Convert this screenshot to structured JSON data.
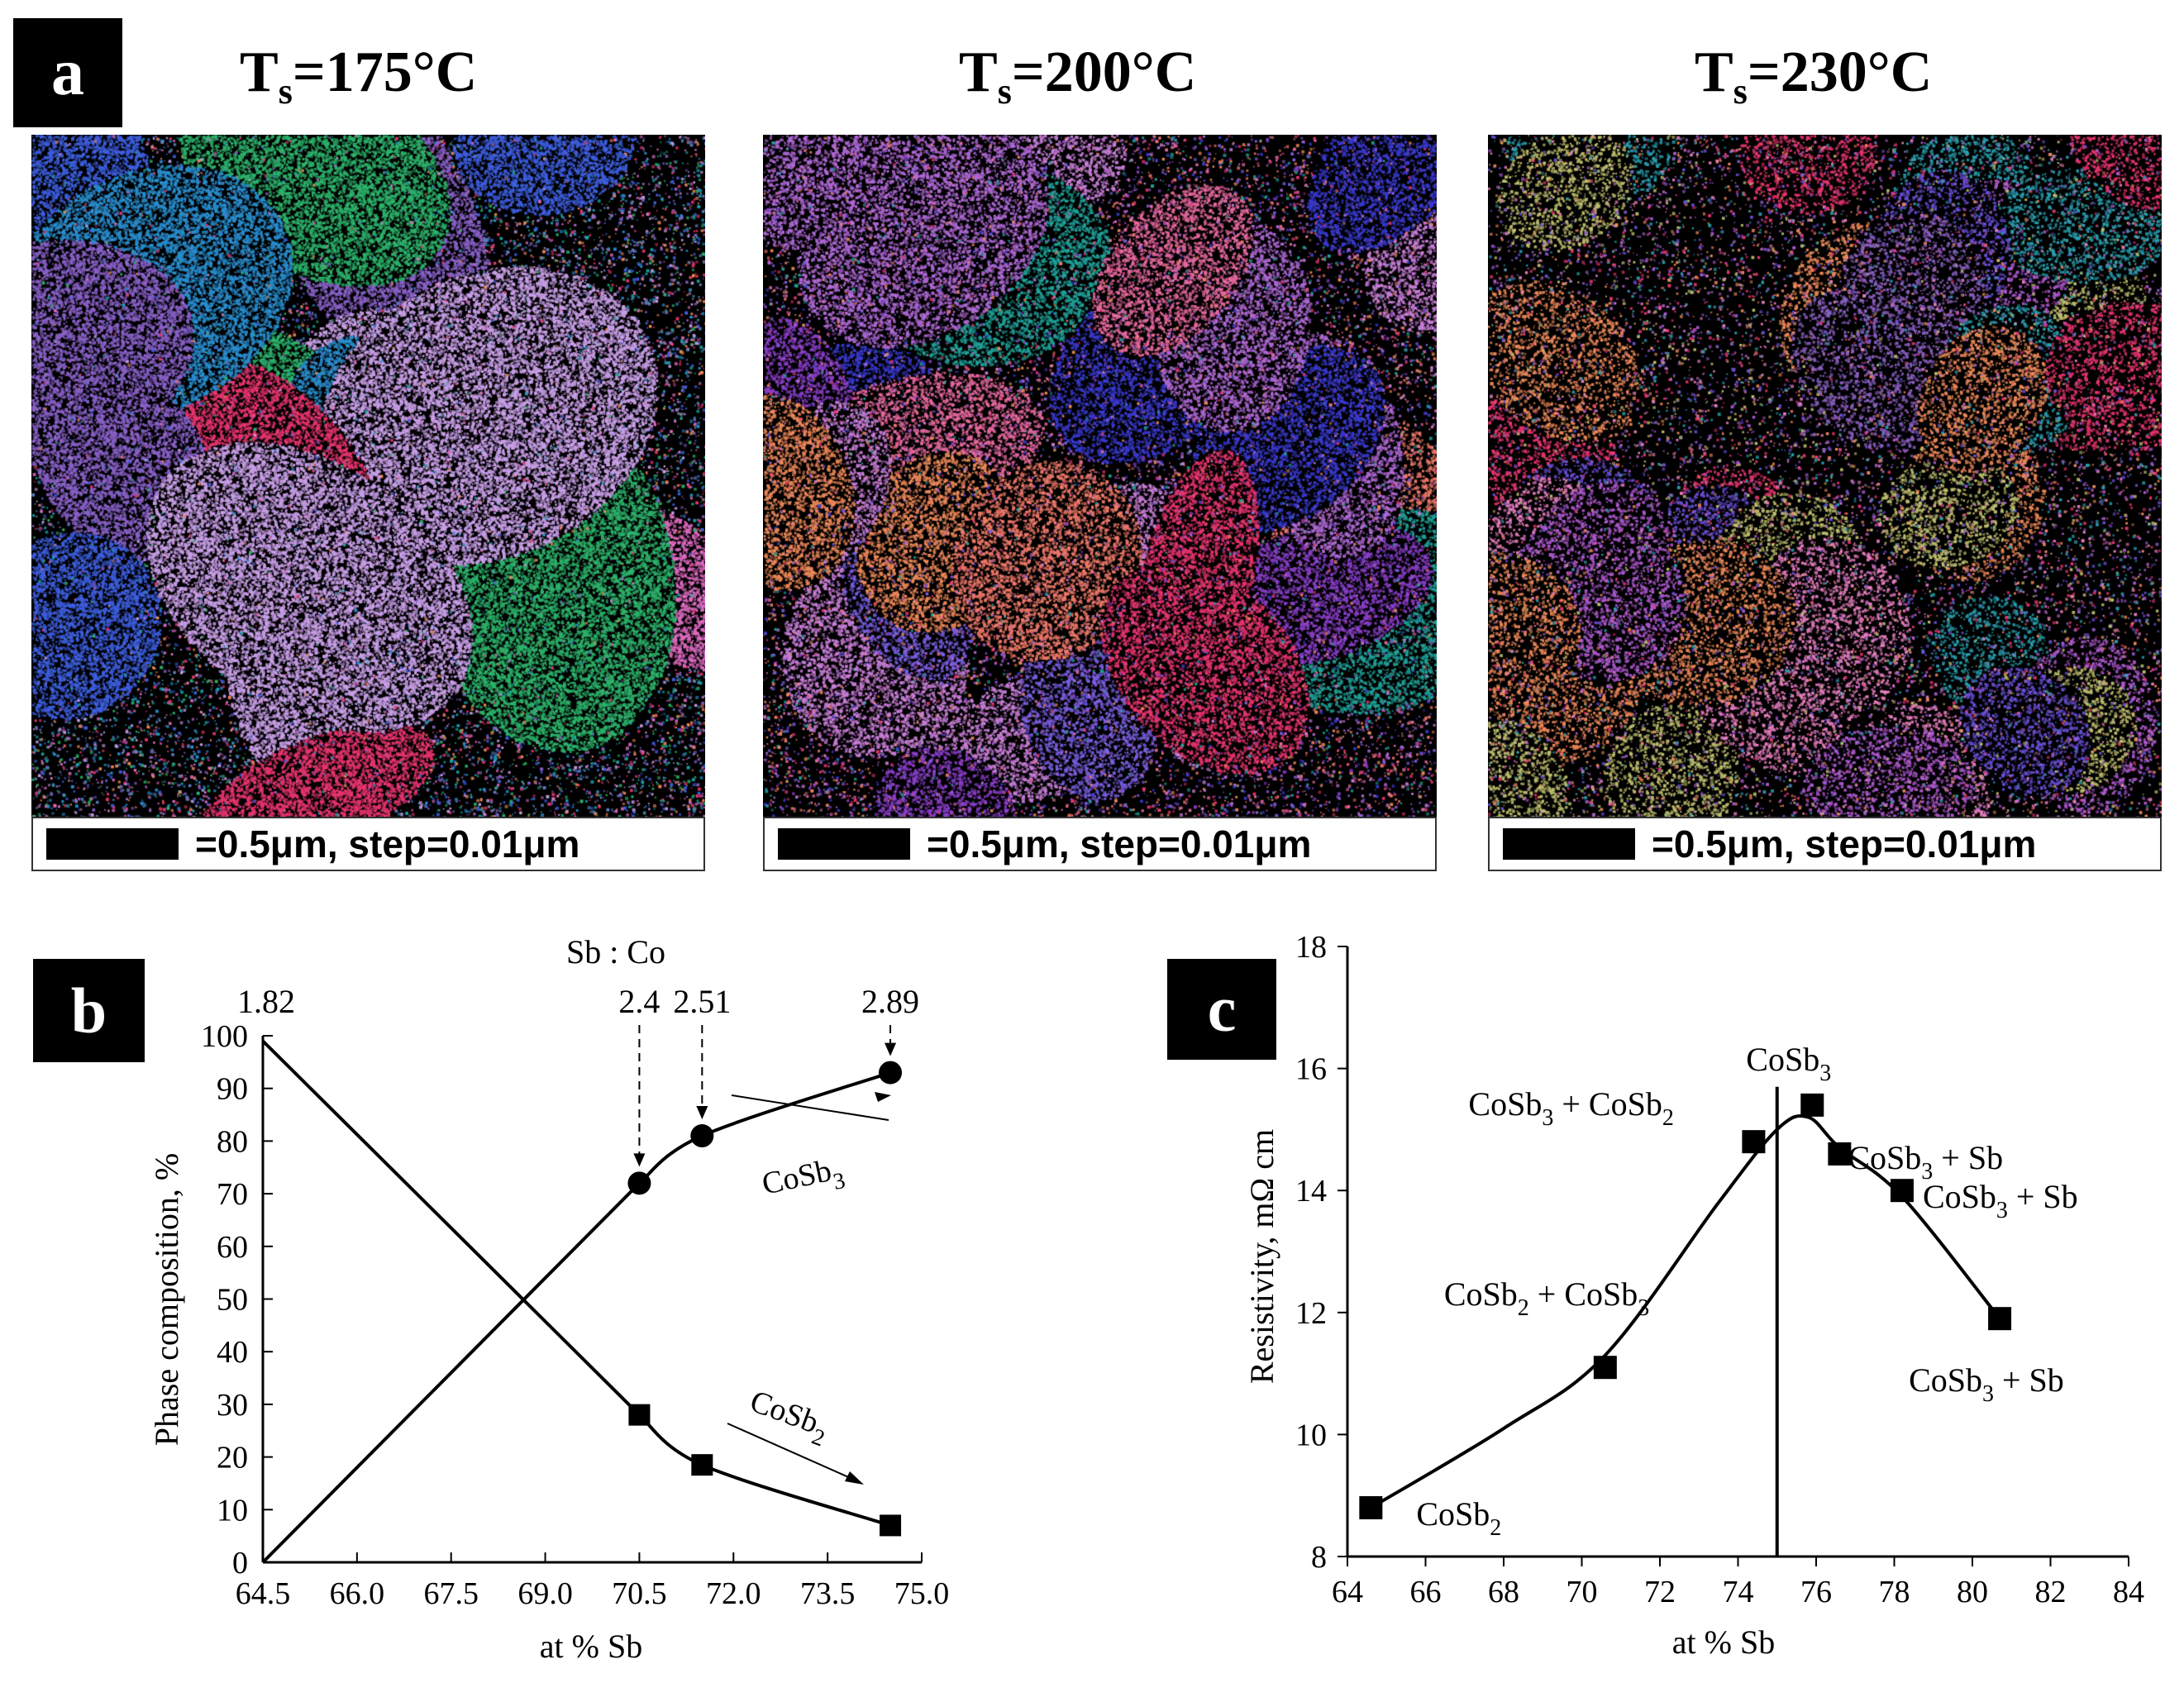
{
  "panel_a": {
    "badge": "a",
    "maps": [
      {
        "title_main": "T",
        "title_sub": "s",
        "title_rest": "=175°C",
        "scale_text": "=0.5μm, step=0.01μm",
        "palette": [
          "#e8356f",
          "#8a62c9",
          "#2a8fd0",
          "#17a6a9",
          "#c9a0e8",
          "#ef8a5a",
          "#5f7fbf",
          "#2db36b",
          "#e06cc2",
          "#3e5fe0"
        ],
        "grain_density": 0.85
      },
      {
        "title_main": "T",
        "title_sub": "s",
        "title_rest": "=200°C",
        "scale_text": "=0.5μm, step=0.01μm",
        "palette": [
          "#e8356f",
          "#8a3fc9",
          "#3a3ad0",
          "#ef8a5a",
          "#c980d8",
          "#e86aa0",
          "#20a39a",
          "#7b5fe0",
          "#f07a6a",
          "#b06ad6"
        ],
        "grain_density": 0.55
      },
      {
        "title_main": "T",
        "title_sub": "s",
        "title_rest": "=230°C",
        "scale_text": "=0.5μm, step=0.01μm",
        "palette": [
          "#e8356f",
          "#b05ad0",
          "#6a4fd8",
          "#ef8a5a",
          "#2aa0b0",
          "#e880c0",
          "#8a60c0",
          "#c0c070"
        ],
        "grain_density": 0.25
      }
    ]
  },
  "panel_b": {
    "badge": "b",
    "ratio_header": "Sb : Co",
    "ylabel": "Phase composition, %",
    "xlabel": "at % Sb",
    "ratio_labels": [
      {
        "x": 64.5,
        "text": "1.82"
      },
      {
        "x": 70.5,
        "text": "2.4"
      },
      {
        "x": 71.5,
        "text": "2.51"
      },
      {
        "x": 74.5,
        "text": "2.89"
      }
    ],
    "series_labels": {
      "cosb3": [
        "CoSb",
        "3"
      ],
      "cosb2": [
        "CoSb",
        "2"
      ]
    }
  },
  "panel_c": {
    "badge": "c",
    "ylabel": "Resistivity, mΩ cm",
    "xlabel": "at % Sb",
    "vertical_line_x": 75,
    "annotations": [
      {
        "x": 64.6,
        "y": 8.8,
        "parts": [
          [
            "CoSb",
            ""
          ],
          [
            "2",
            "sub"
          ]
        ]
      },
      {
        "x": 70.6,
        "y": 11.1,
        "parts": [
          [
            "CoSb",
            ""
          ],
          [
            "2",
            "sub"
          ],
          [
            " + CoSb",
            ""
          ],
          [
            "3",
            "sub"
          ]
        ]
      },
      {
        "x": 74.4,
        "y": 14.8,
        "parts": [
          [
            "CoSb",
            ""
          ],
          [
            "3",
            "sub"
          ],
          [
            " + CoSb",
            ""
          ],
          [
            "2",
            "sub"
          ]
        ]
      },
      {
        "x": 75.9,
        "y": 15.4,
        "parts": [
          [
            "CoSb",
            ""
          ],
          [
            "3",
            "sub"
          ]
        ]
      },
      {
        "x": 76.6,
        "y": 14.6,
        "parts": [
          [
            "CoSb",
            ""
          ],
          [
            "3",
            "sub"
          ],
          [
            " + Sb",
            ""
          ]
        ]
      },
      {
        "x": 78.2,
        "y": 14.0,
        "parts": [
          [
            "CoSb",
            ""
          ],
          [
            "3",
            "sub"
          ],
          [
            " + Sb",
            ""
          ]
        ]
      },
      {
        "x": 80.7,
        "y": 11.9,
        "parts": [
          [
            "CoSb",
            ""
          ],
          [
            "3",
            "sub"
          ],
          [
            " + Sb",
            ""
          ]
        ]
      }
    ]
  },
  "chart_data": [
    {
      "type": "line",
      "panel": "b",
      "xlabel": "at % Sb",
      "ylabel": "Phase composition, %",
      "xlim": [
        64.5,
        75.0
      ],
      "ylim": [
        0,
        100
      ],
      "xticks": [
        "64.5",
        "66.0",
        "67.5",
        "69.0",
        "70.5",
        "72.0",
        "73.5",
        "75.0"
      ],
      "yticks": [
        "0",
        "10",
        "20",
        "30",
        "40",
        "50",
        "60",
        "70",
        "80",
        "90",
        "100"
      ],
      "series": [
        {
          "name": "CoSb3",
          "marker": "circle",
          "x": [
            64.5,
            70.5,
            71.5,
            74.5
          ],
          "y": [
            0,
            72,
            81,
            93
          ]
        },
        {
          "name": "CoSb2",
          "marker": "square",
          "x": [
            64.5,
            70.5,
            71.5,
            74.5
          ],
          "y": [
            99,
            28,
            18.5,
            7
          ]
        }
      ]
    },
    {
      "type": "line",
      "panel": "c",
      "xlabel": "at % Sb",
      "ylabel": "Resistivity, mΩ cm",
      "xlim": [
        64,
        84
      ],
      "ylim": [
        8,
        18
      ],
      "xticks": [
        "64",
        "66",
        "68",
        "70",
        "72",
        "74",
        "76",
        "78",
        "80",
        "82",
        "84"
      ],
      "yticks": [
        "8",
        "10",
        "12",
        "14",
        "16",
        "18"
      ],
      "series": [
        {
          "name": "",
          "marker": "square",
          "x": [
            64.6,
            70.6,
            74.4,
            75.9,
            76.6,
            78.2,
            80.7
          ],
          "y": [
            8.8,
            11.1,
            14.8,
            15.4,
            14.6,
            14.0,
            11.9
          ]
        }
      ]
    }
  ]
}
